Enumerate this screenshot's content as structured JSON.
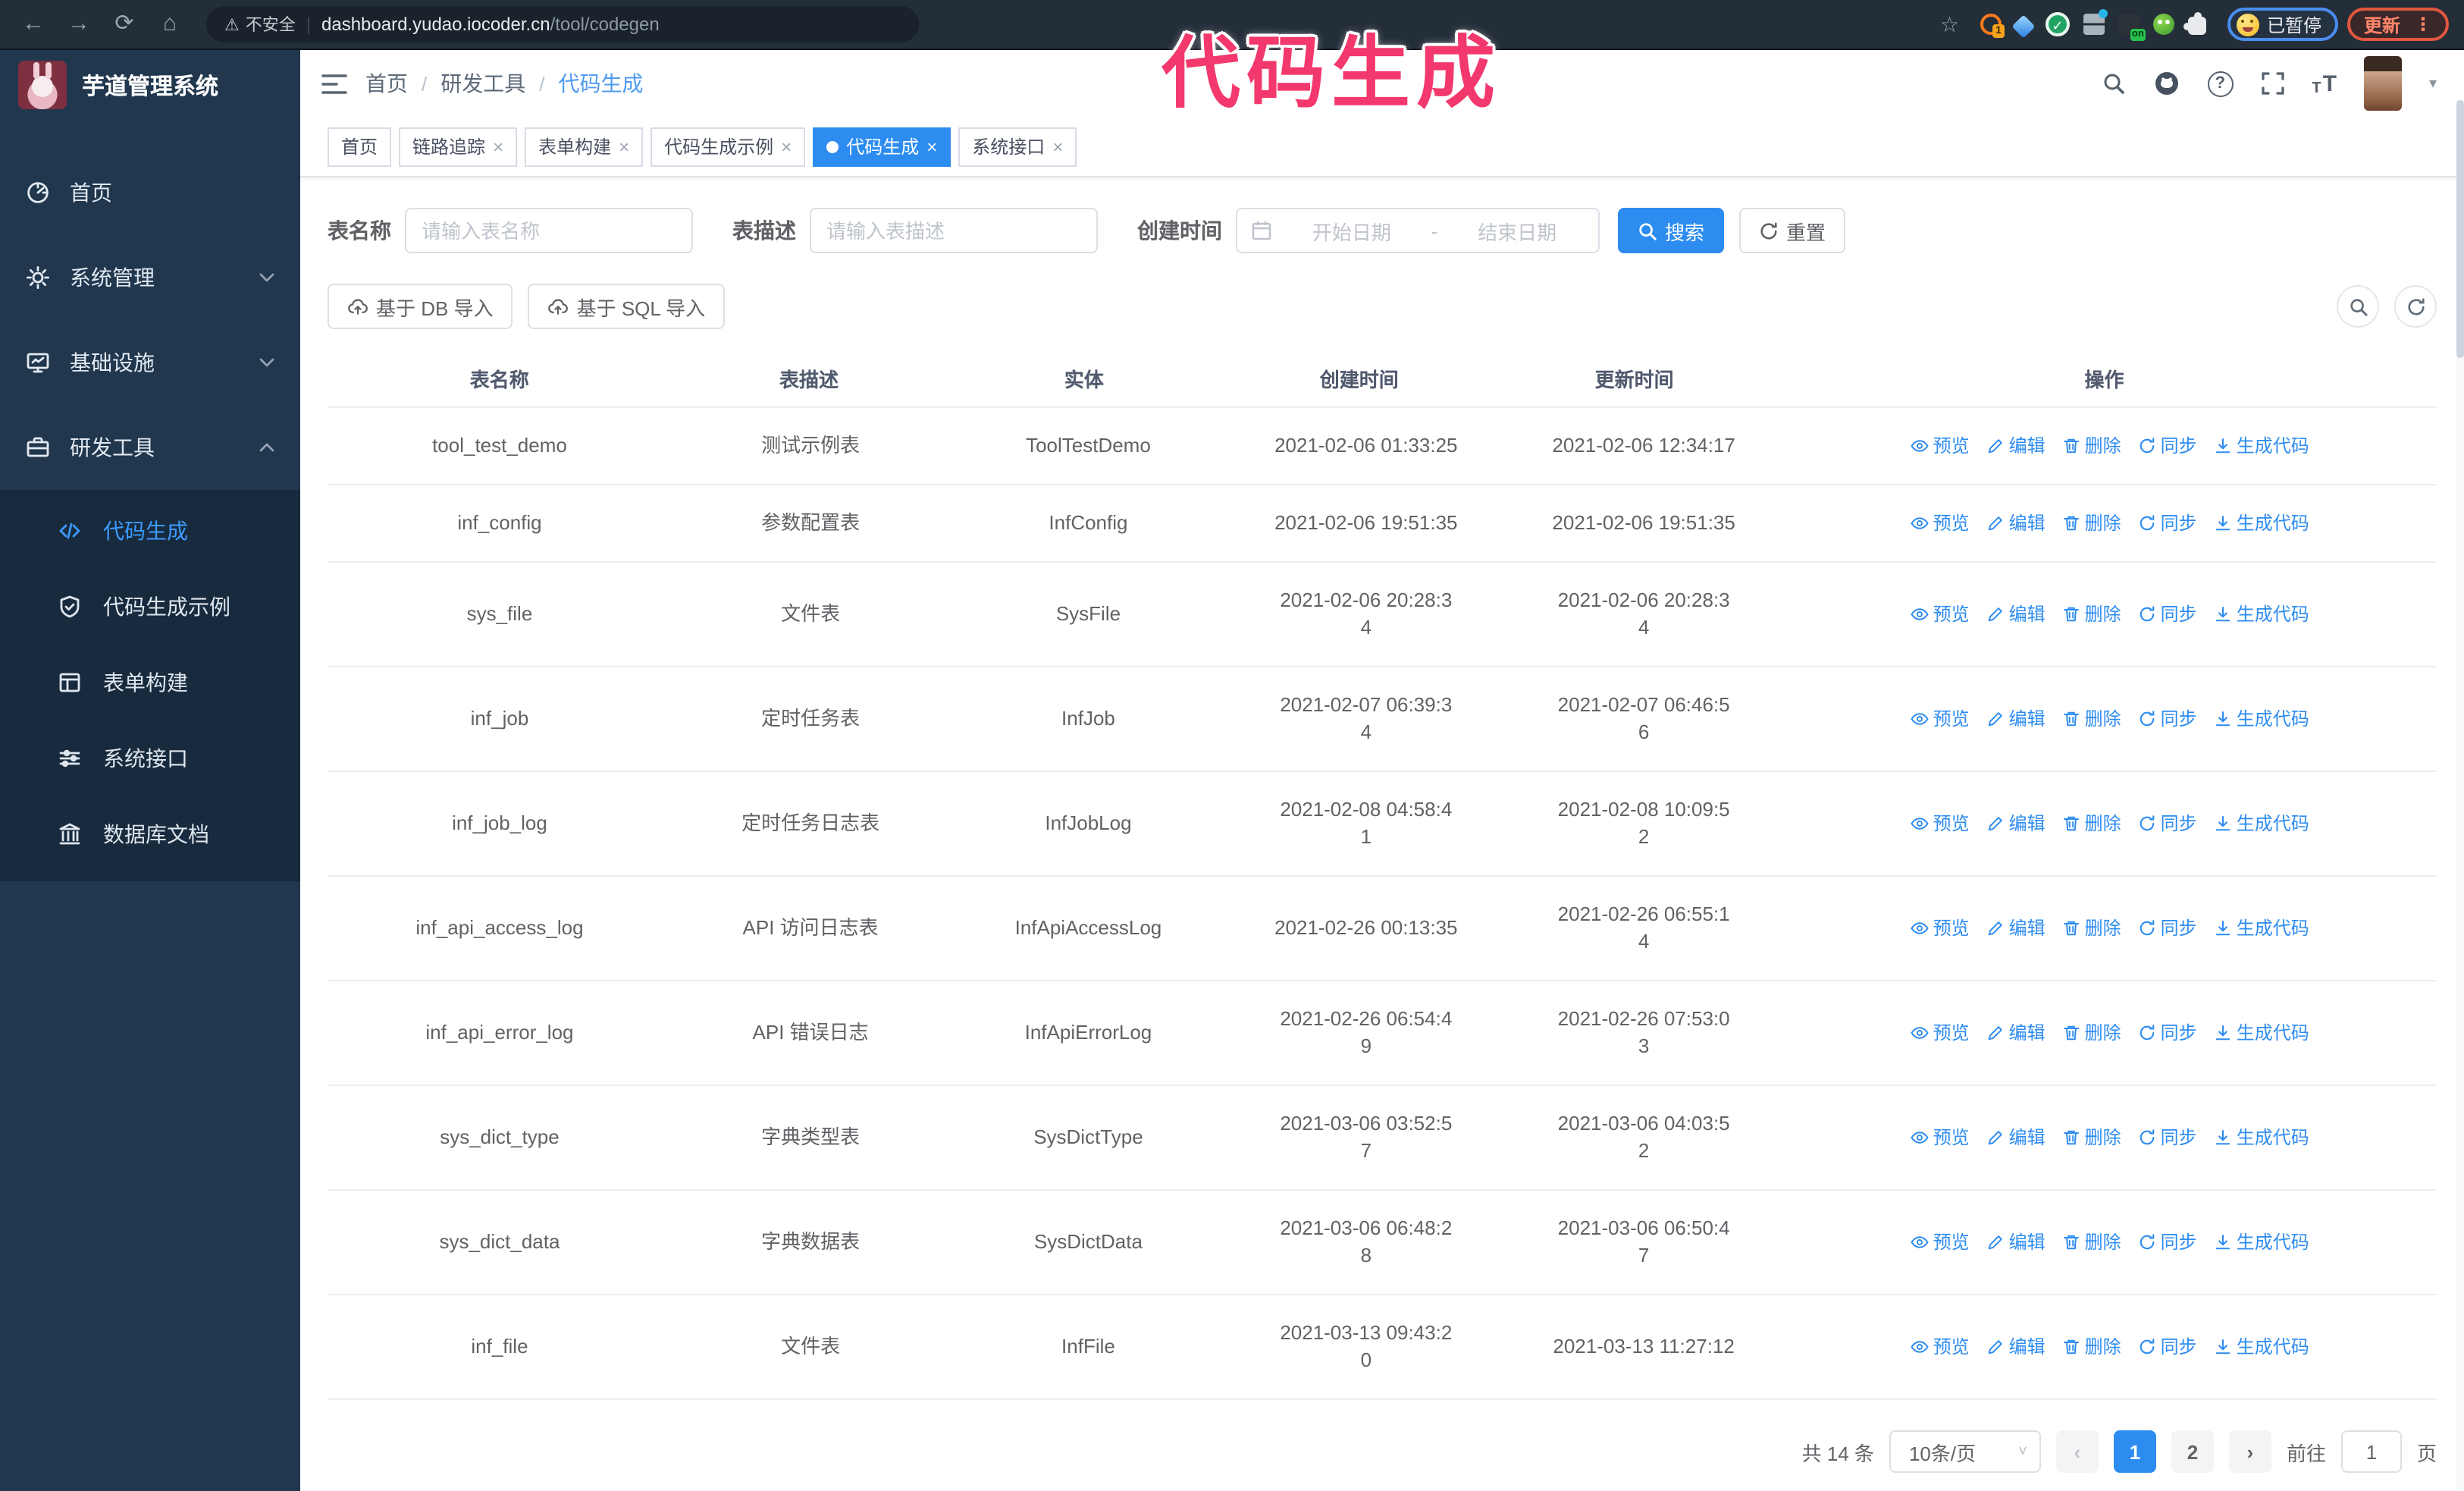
{
  "browser": {
    "security_label": "不安全",
    "url_host": "dashboard.yudao.iocoder.cn",
    "url_path": "/tool/codegen",
    "paused_badge": "已暂停",
    "update_label": "更新",
    "extension_badge": "1",
    "extension_on_badge": "on"
  },
  "overlay_title": "代码生成",
  "sidebar": {
    "logo_title": "芋道管理系统",
    "items": [
      {
        "label": "首页"
      },
      {
        "label": "系统管理"
      },
      {
        "label": "基础设施"
      },
      {
        "label": "研发工具"
      }
    ],
    "sub_items": [
      {
        "label": "代码生成"
      },
      {
        "label": "代码生成示例"
      },
      {
        "label": "表单构建"
      },
      {
        "label": "系统接口"
      },
      {
        "label": "数据库文档"
      }
    ]
  },
  "breadcrumb": [
    "首页",
    "研发工具",
    "代码生成"
  ],
  "tabs": [
    {
      "label": "首页"
    },
    {
      "label": "链路追踪"
    },
    {
      "label": "表单构建"
    },
    {
      "label": "代码生成示例"
    },
    {
      "label": "代码生成"
    },
    {
      "label": "系统接口"
    }
  ],
  "filters": {
    "name_label": "表名称",
    "name_placeholder": "请输入表名称",
    "desc_label": "表描述",
    "desc_placeholder": "请输入表描述",
    "time_label": "创建时间",
    "start_placeholder": "开始日期",
    "range_separator": "-",
    "end_placeholder": "结束日期",
    "search_label": "搜索",
    "reset_label": "重置"
  },
  "toolbar": {
    "import_db_label": "基于 DB 导入",
    "import_sql_label": "基于 SQL 导入"
  },
  "table": {
    "columns": [
      "表名称",
      "表描述",
      "实体",
      "创建时间",
      "更新时间",
      "操作"
    ],
    "action_labels": [
      "预览",
      "编辑",
      "删除",
      "同步",
      "生成代码"
    ],
    "rows": [
      {
        "name": "tool_test_demo",
        "desc": "测试示例表",
        "entity": "ToolTestDemo",
        "created": [
          "2021-02-06 01:33:25"
        ],
        "updated": [
          "2021-02-06 12:34:17"
        ]
      },
      {
        "name": "inf_config",
        "desc": "参数配置表",
        "entity": "InfConfig",
        "created": [
          "2021-02-06 19:51:35"
        ],
        "updated": [
          "2021-02-06 19:51:35"
        ]
      },
      {
        "name": "sys_file",
        "desc": "文件表",
        "entity": "SysFile",
        "created": [
          "2021-02-06 20:28:3",
          "4"
        ],
        "updated": [
          "2021-02-06 20:28:3",
          "4"
        ]
      },
      {
        "name": "inf_job",
        "desc": "定时任务表",
        "entity": "InfJob",
        "created": [
          "2021-02-07 06:39:3",
          "4"
        ],
        "updated": [
          "2021-02-07 06:46:5",
          "6"
        ]
      },
      {
        "name": "inf_job_log",
        "desc": "定时任务日志表",
        "entity": "InfJobLog",
        "created": [
          "2021-02-08 04:58:4",
          "1"
        ],
        "updated": [
          "2021-02-08 10:09:5",
          "2"
        ]
      },
      {
        "name": "inf_api_access_log",
        "desc": "API 访问日志表",
        "entity": "InfApiAccessLog",
        "created": [
          "2021-02-26 00:13:35"
        ],
        "updated": [
          "2021-02-26 06:55:1",
          "4"
        ]
      },
      {
        "name": "inf_api_error_log",
        "desc": "API 错误日志",
        "entity": "InfApiErrorLog",
        "created": [
          "2021-02-26 06:54:4",
          "9"
        ],
        "updated": [
          "2021-02-26 07:53:0",
          "3"
        ]
      },
      {
        "name": "sys_dict_type",
        "desc": "字典类型表",
        "entity": "SysDictType",
        "created": [
          "2021-03-06 03:52:5",
          "7"
        ],
        "updated": [
          "2021-03-06 04:03:5",
          "2"
        ]
      },
      {
        "name": "sys_dict_data",
        "desc": "字典数据表",
        "entity": "SysDictData",
        "created": [
          "2021-03-06 06:48:2",
          "8"
        ],
        "updated": [
          "2021-03-06 06:50:4",
          "7"
        ]
      },
      {
        "name": "inf_file",
        "desc": "文件表",
        "entity": "InfFile",
        "created": [
          "2021-03-13 09:43:2",
          "0"
        ],
        "updated": [
          "2021-03-13 11:27:12"
        ]
      }
    ]
  },
  "pagination": {
    "total": "共 14 条",
    "page_size": "10条/页",
    "pages": [
      "1",
      "2"
    ],
    "goto_label": "前往",
    "goto_value": "1",
    "goto_suffix": "页"
  },
  "icons": {
    "back": "←",
    "forward": "→",
    "reload": "⟳",
    "home": "⌂",
    "warning": "⚠",
    "star": "☆",
    "close": "×",
    "caret": "▾",
    "ellipsis": "⋮",
    "question": "?",
    "check": "✓",
    "font_small": "T",
    "font_big": "T"
  },
  "colors": {
    "accent": "#2d8cf0",
    "sidebar_bg": "#20374e",
    "submenu_bg": "#182a3e",
    "chrome_bg": "#242e39",
    "overlay_pink": "#f2386c",
    "paused_border": "#4a8df0",
    "update_color": "#ff8468"
  }
}
